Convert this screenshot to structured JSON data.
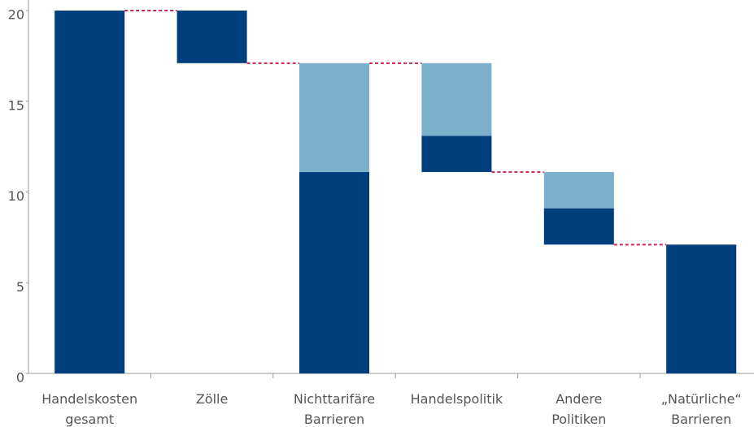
{
  "chart_data": {
    "type": "waterfall",
    "categories": [
      "Handelskosten gesamt",
      "Zölle",
      "Nichttarifäre Barrieren",
      "Handelspolitik",
      "Andere Politiken",
      "„Natürliche“ Barrieren"
    ],
    "measure": [
      "total",
      "decrease",
      "total",
      "decrease",
      "decrease",
      "total"
    ],
    "series": [
      {
        "color": "#003f7d",
        "values": [
          20,
          2.9,
          11.1,
          2.0,
          2.0,
          7.1
        ]
      },
      {
        "color": "#7ab0cc",
        "values": [
          null,
          null,
          6.0,
          4.0,
          2.0,
          null
        ]
      }
    ],
    "connector_color": "#c8254f",
    "ylim": [
      0,
      20
    ],
    "yticks": [
      0,
      5,
      10,
      15,
      20
    ]
  }
}
